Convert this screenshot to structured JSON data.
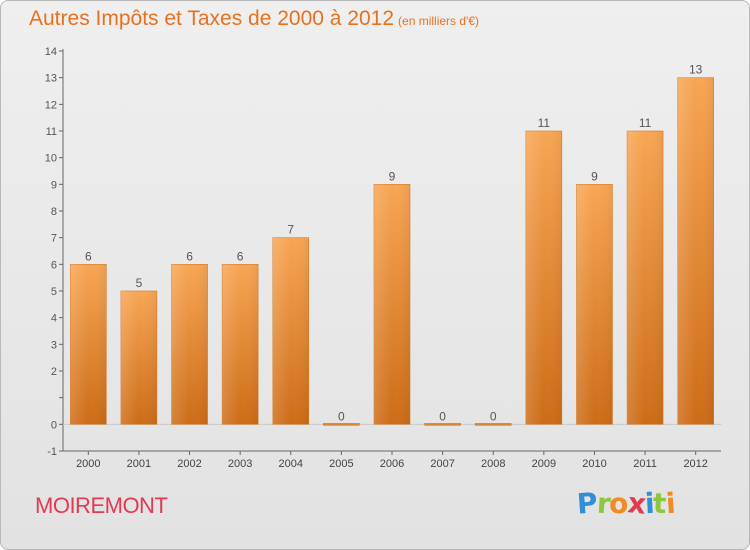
{
  "chart_data": {
    "type": "bar",
    "title": "Autres Impôts et Taxes de 2000 à 2012",
    "unit_label": "(en milliers d'€)",
    "categories": [
      "2000",
      "2001",
      "2002",
      "2003",
      "2004",
      "2005",
      "2006",
      "2007",
      "2008",
      "2009",
      "2010",
      "2011",
      "2012"
    ],
    "values": [
      6,
      5,
      6,
      6,
      7,
      0,
      9,
      0,
      0,
      11,
      9,
      11,
      13
    ],
    "ylim": [
      -1,
      14
    ],
    "yticks": [
      -1,
      0,
      1,
      2,
      3,
      4,
      5,
      6,
      7,
      8,
      9,
      10,
      11,
      12,
      13,
      14
    ],
    "ytick_labels": [
      "-1",
      "0",
      "",
      "2",
      "3",
      "4",
      "5",
      "6",
      "7",
      "8",
      "9",
      "10",
      "11",
      "12",
      "13",
      "14"
    ],
    "grid": false,
    "bar_color": "#f0953f",
    "xlabel": "",
    "ylabel": ""
  },
  "footer": {
    "commune": "MOIREMONT",
    "logo_letters": [
      {
        "ch": "P",
        "color": "#2f8fd8"
      },
      {
        "ch": "r",
        "color": "#8ec63f"
      },
      {
        "ch": "o",
        "color": "#f08a24"
      },
      {
        "ch": "x",
        "color": "#e23a52"
      },
      {
        "ch": "i",
        "color": "#2f8fd8"
      },
      {
        "ch": "t",
        "color": "#8ec63f"
      },
      {
        "ch": "i",
        "color": "#f08a24"
      }
    ]
  }
}
